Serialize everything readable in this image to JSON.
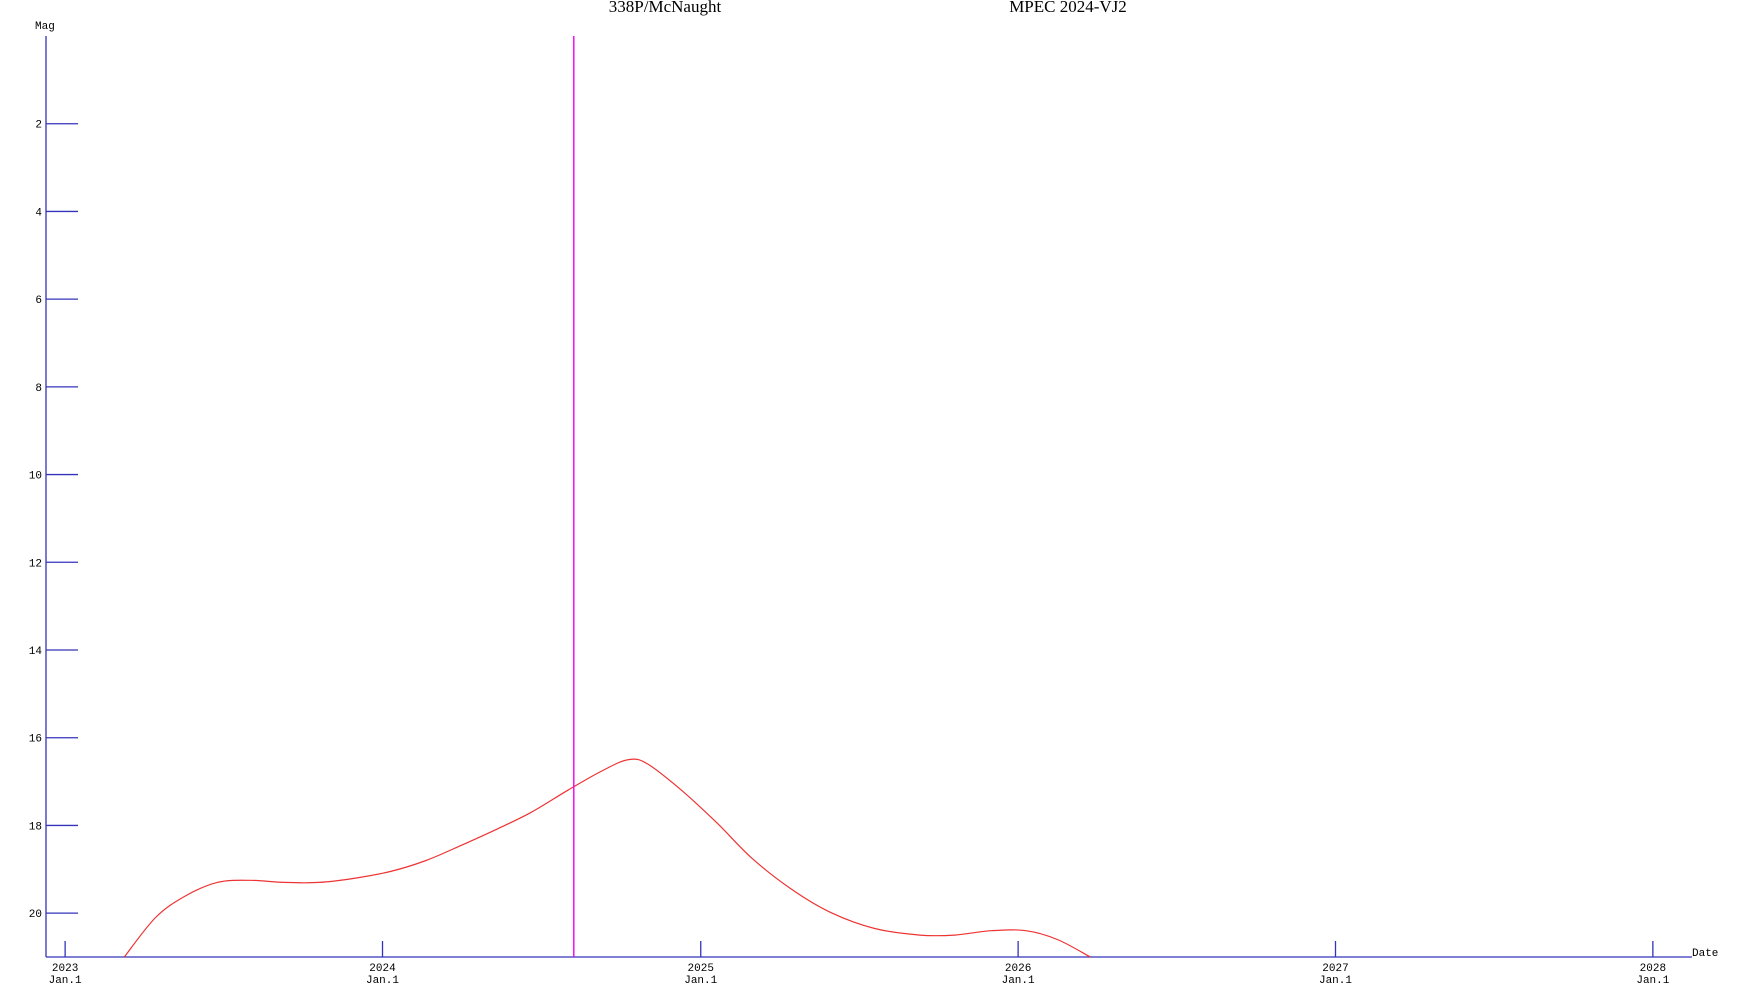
{
  "chart_data": {
    "type": "line",
    "title_left": "338P/McNaught",
    "title_right": "MPEC 2024-VJ2",
    "ylabel": "Mag",
    "xlabel": "Date",
    "y_inverted": true,
    "ylim": [
      0,
      21
    ],
    "yticks": [
      2,
      4,
      6,
      8,
      10,
      12,
      14,
      16,
      18,
      20
    ],
    "xlim": [
      "2022-12-10",
      "2028-02-15"
    ],
    "xticks": [
      {
        "date": "2023-01-01",
        "year": "2023",
        "day": "Jan.1"
      },
      {
        "date": "2024-01-01",
        "year": "2024",
        "day": "Jan.1"
      },
      {
        "date": "2025-01-01",
        "year": "2025",
        "day": "Jan.1"
      },
      {
        "date": "2026-01-01",
        "year": "2026",
        "day": "Jan.1"
      },
      {
        "date": "2027-01-01",
        "year": "2027",
        "day": "Jan.1"
      },
      {
        "date": "2028-01-01",
        "year": "2028",
        "day": "Jan.1"
      }
    ],
    "current_date": "2024-08-08",
    "series": [
      {
        "color": "#ee3333",
        "points": [
          [
            "2023-03-10",
            21.0
          ],
          [
            "2023-04-15",
            20.1
          ],
          [
            "2023-05-20",
            19.6
          ],
          [
            "2023-06-25",
            19.3
          ],
          [
            "2023-08-01",
            19.25
          ],
          [
            "2023-09-10",
            19.3
          ],
          [
            "2023-10-20",
            19.3
          ],
          [
            "2023-12-01",
            19.2
          ],
          [
            "2024-01-10",
            19.05
          ],
          [
            "2024-02-20",
            18.8
          ],
          [
            "2024-04-01",
            18.45
          ],
          [
            "2024-05-10",
            18.1
          ],
          [
            "2024-06-20",
            17.7
          ],
          [
            "2024-08-01",
            17.2
          ],
          [
            "2024-09-10",
            16.75
          ],
          [
            "2024-10-10",
            16.5
          ],
          [
            "2024-11-01",
            16.6
          ],
          [
            "2024-12-10",
            17.2
          ],
          [
            "2025-01-20",
            17.95
          ],
          [
            "2025-03-01",
            18.75
          ],
          [
            "2025-04-15",
            19.45
          ],
          [
            "2025-06-01",
            20.0
          ],
          [
            "2025-07-20",
            20.35
          ],
          [
            "2025-09-10",
            20.5
          ],
          [
            "2025-10-20",
            20.5
          ],
          [
            "2025-12-01",
            20.4
          ],
          [
            "2026-01-10",
            20.4
          ],
          [
            "2026-02-15",
            20.6
          ],
          [
            "2026-03-25",
            21.0
          ]
        ]
      }
    ],
    "colors": {
      "axis": "#3333bb",
      "curve": "#ee3333",
      "marker": "#ee00ee"
    }
  }
}
